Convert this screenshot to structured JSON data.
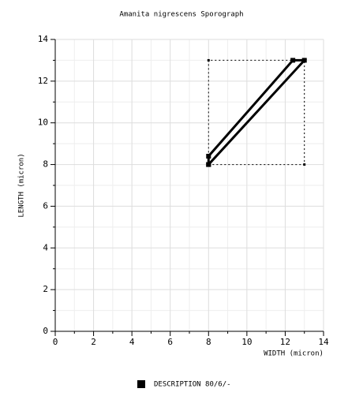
{
  "chart_data": {
    "type": "line",
    "title": "Amanita nigrescens Sporograph",
    "xlabel": "WIDTH (micron)",
    "ylabel": "LENGTH (micron)",
    "series": [
      {
        "name": "DESCRIPTION 80/6/-",
        "color": "#000000",
        "x": [
          8,
          8,
          12.4,
          13,
          8
        ],
        "values": [
          8,
          8.4,
          13,
          13,
          8
        ]
      },
      {
        "color": "#000000",
        "dashed": true,
        "x": [
          8,
          13,
          13,
          8,
          8
        ],
        "values": [
          8,
          8,
          13,
          13,
          8
        ]
      }
    ],
    "xlim": [
      0,
      14
    ],
    "ylim": [
      0,
      14
    ],
    "xticks": [
      0,
      2,
      4,
      6,
      8,
      10,
      12,
      14
    ],
    "yticks": [
      0,
      2,
      4,
      6,
      8,
      10,
      12,
      14
    ],
    "xminor": [
      1,
      3,
      5,
      7,
      9,
      11,
      13
    ],
    "yminor": [
      1,
      3,
      5,
      7,
      9,
      11,
      13
    ],
    "grid": true,
    "legend": "bottom"
  }
}
